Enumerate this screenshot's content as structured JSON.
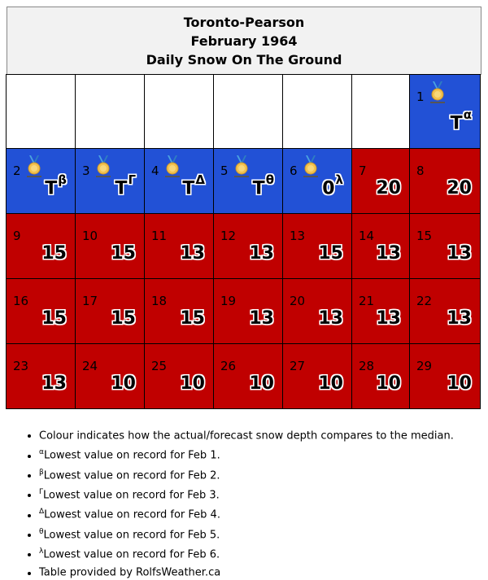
{
  "header": {
    "station": "Toronto-Pearson",
    "month": "February 1964",
    "title": "Daily Snow On The Ground"
  },
  "colors": {
    "below_median": "#2251d6",
    "above_median": "#c00000",
    "blank": "#ffffff"
  },
  "days": [
    {
      "day": "1",
      "value": "T",
      "sup": "α",
      "color": "blue",
      "medal": "record-medal-icon"
    },
    {
      "day": "2",
      "value": "T",
      "sup": "β",
      "color": "blue",
      "medal": "record-medal-icon"
    },
    {
      "day": "3",
      "value": "T",
      "sup": "Γ",
      "color": "blue",
      "medal": "record-medal-icon"
    },
    {
      "day": "4",
      "value": "T",
      "sup": "Δ",
      "color": "blue",
      "medal": "record-medal-icon"
    },
    {
      "day": "5",
      "value": "T",
      "sup": "θ",
      "color": "blue",
      "medal": "record-medal-icon"
    },
    {
      "day": "6",
      "value": "0",
      "sup": "λ",
      "color": "blue",
      "medal": "record-medal-icon"
    },
    {
      "day": "7",
      "value": "20",
      "sup": "",
      "color": "red"
    },
    {
      "day": "8",
      "value": "20",
      "sup": "",
      "color": "red"
    },
    {
      "day": "9",
      "value": "15",
      "sup": "",
      "color": "red"
    },
    {
      "day": "10",
      "value": "15",
      "sup": "",
      "color": "red"
    },
    {
      "day": "11",
      "value": "13",
      "sup": "",
      "color": "red"
    },
    {
      "day": "12",
      "value": "13",
      "sup": "",
      "color": "red"
    },
    {
      "day": "13",
      "value": "15",
      "sup": "",
      "color": "red"
    },
    {
      "day": "14",
      "value": "13",
      "sup": "",
      "color": "red"
    },
    {
      "day": "15",
      "value": "13",
      "sup": "",
      "color": "red"
    },
    {
      "day": "16",
      "value": "15",
      "sup": "",
      "color": "red"
    },
    {
      "day": "17",
      "value": "15",
      "sup": "",
      "color": "red"
    },
    {
      "day": "18",
      "value": "15",
      "sup": "",
      "color": "red"
    },
    {
      "day": "19",
      "value": "13",
      "sup": "",
      "color": "red"
    },
    {
      "day": "20",
      "value": "13",
      "sup": "",
      "color": "red"
    },
    {
      "day": "21",
      "value": "13",
      "sup": "",
      "color": "red"
    },
    {
      "day": "22",
      "value": "13",
      "sup": "",
      "color": "red"
    },
    {
      "day": "23",
      "value": "13",
      "sup": "",
      "color": "red"
    },
    {
      "day": "24",
      "value": "10",
      "sup": "",
      "color": "red"
    },
    {
      "day": "25",
      "value": "10",
      "sup": "",
      "color": "red"
    },
    {
      "day": "26",
      "value": "10",
      "sup": "",
      "color": "red"
    },
    {
      "day": "27",
      "value": "10",
      "sup": "",
      "color": "red"
    },
    {
      "day": "28",
      "value": "10",
      "sup": "",
      "color": "red"
    },
    {
      "day": "29",
      "value": "10",
      "sup": "",
      "color": "red"
    }
  ],
  "notes": [
    {
      "sup": "",
      "text": "Colour indicates how the actual/forecast snow depth compares to the median."
    },
    {
      "sup": "α",
      "text": "Lowest value on record for Feb 1."
    },
    {
      "sup": "β",
      "text": "Lowest value on record for Feb 2."
    },
    {
      "sup": "Γ",
      "text": "Lowest value on record for Feb 3."
    },
    {
      "sup": "Δ",
      "text": "Lowest value on record for Feb 4."
    },
    {
      "sup": "θ",
      "text": "Lowest value on record for Feb 5."
    },
    {
      "sup": "λ",
      "text": "Lowest value on record for Feb 6."
    },
    {
      "sup": "",
      "text": "Table provided by RolfsWeather.ca"
    }
  ]
}
